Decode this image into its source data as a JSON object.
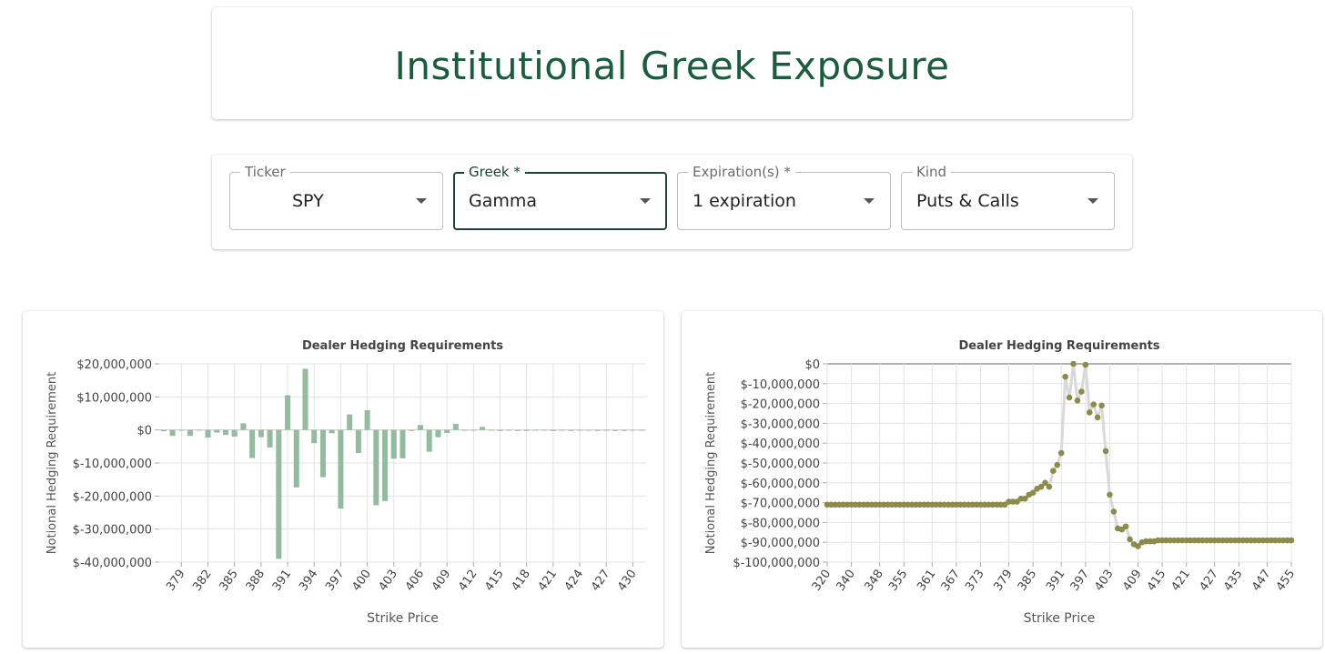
{
  "page": {
    "title": "Institutional Greek Exposure"
  },
  "controls": {
    "ticker": {
      "label": "Ticker",
      "value": "SPY"
    },
    "greek": {
      "label": "Greek *",
      "value": "Gamma"
    },
    "expiration": {
      "label": "Expiration(s) *",
      "value": "1 expiration"
    },
    "kind": {
      "label": "Kind",
      "value": "Puts & Calls"
    }
  },
  "colors": {
    "accent": "#1b4332",
    "bar": "#93bc9f",
    "line": "#d9d9d9",
    "point": "#8b8b4a"
  },
  "chart_data": [
    {
      "type": "bar",
      "title": "Dealer Hedging Requirements",
      "xlabel": "Strike Price",
      "ylabel": "Notional Hedging Requirement",
      "ylim": [
        -40000000,
        20000000
      ],
      "yticks": [
        20000000,
        10000000,
        0,
        -10000000,
        -20000000,
        -30000000,
        -40000000
      ],
      "ytick_labels": [
        "$20,000,000",
        "$10,000,000",
        "$0",
        "$-10,000,000",
        "$-20,000,000",
        "$-30,000,000",
        "$-40,000,000"
      ],
      "xtick_labels": [
        "379",
        "382",
        "385",
        "388",
        "391",
        "394",
        "397",
        "400",
        "403",
        "406",
        "409",
        "412",
        "415",
        "418",
        "421",
        "424",
        "427",
        "430"
      ],
      "grid": true,
      "categories": [
        377,
        378,
        379,
        380,
        381,
        382,
        383,
        384,
        385,
        386,
        387,
        388,
        389,
        390,
        391,
        392,
        393,
        394,
        395,
        396,
        397,
        398,
        399,
        400,
        401,
        402,
        403,
        404,
        405,
        406,
        407,
        408,
        409,
        410,
        411,
        412,
        413,
        414,
        415,
        416,
        417,
        418,
        419,
        420,
        421,
        422,
        423,
        424,
        425,
        426,
        427,
        428,
        429,
        430,
        431
      ],
      "values": [
        -400000,
        -1800000,
        0,
        -1800000,
        0,
        -2300000,
        -800000,
        -1500000,
        -2000000,
        2000000,
        -8500000,
        -2200000,
        -5300000,
        -39000000,
        10500000,
        -17400000,
        18500000,
        -4000000,
        -14300000,
        -1000000,
        -23800000,
        4700000,
        -7000000,
        6000000,
        -22800000,
        -21500000,
        -8700000,
        -8600000,
        -300000,
        1500000,
        -6600000,
        -2200000,
        -900000,
        1800000,
        -200000,
        -200000,
        900000,
        -100000,
        -300000,
        -200000,
        -300000,
        -300000,
        -200000,
        -200000,
        -300000,
        -200000,
        -300000,
        -200000,
        -200000,
        -300000,
        -200000,
        -300000,
        -300000,
        -200000,
        -200000
      ]
    },
    {
      "type": "line",
      "title": "Dealer Hedging Requirements",
      "xlabel": "Strike Price",
      "ylabel": "Notional Hedging Requirement",
      "ylim": [
        -100000000,
        0
      ],
      "yticks": [
        0,
        -10000000,
        -20000000,
        -30000000,
        -40000000,
        -50000000,
        -60000000,
        -70000000,
        -80000000,
        -90000000,
        -100000000
      ],
      "ytick_labels": [
        "$0",
        "$-10,000,000",
        "$-20,000,000",
        "$-30,000,000",
        "$-40,000,000",
        "$-50,000,000",
        "$-60,000,000",
        "$-70,000,000",
        "$-80,000,000",
        "$-90,000,000",
        "$-100,000,000"
      ],
      "xtick_labels": [
        "320",
        "340",
        "348",
        "355",
        "361",
        "367",
        "373",
        "379",
        "385",
        "391",
        "397",
        "403",
        "409",
        "415",
        "421",
        "427",
        "435",
        "447",
        "455"
      ],
      "grid": true,
      "values": [
        -71000000,
        -71000000,
        -71000000,
        -71000000,
        -71000000,
        -71000000,
        -71000000,
        -71000000,
        -71000000,
        -71000000,
        -71000000,
        -71000000,
        -71000000,
        -71000000,
        -71000000,
        -71000000,
        -71000000,
        -71000000,
        -71000000,
        -71000000,
        -71000000,
        -71000000,
        -71000000,
        -71000000,
        -71000000,
        -71000000,
        -71000000,
        -71000000,
        -71000000,
        -71000000,
        -71000000,
        -71000000,
        -71000000,
        -71000000,
        -71000000,
        -71000000,
        -71000000,
        -71000000,
        -71000000,
        -71000000,
        -71000000,
        -71000000,
        -71000000,
        -71000000,
        -71000000,
        -69500000,
        -69500000,
        -69500000,
        -68000000,
        -68000000,
        -66000000,
        -65000000,
        -63000000,
        -62000000,
        -60000000,
        -62000000,
        -54000000,
        -51000000,
        -45000000,
        -6500000,
        -17000000,
        0,
        -18500000,
        -14000000,
        -500000,
        -24500000,
        -20500000,
        -27000000,
        -21000000,
        -44000000,
        -66000000,
        -74500000,
        -83000000,
        -83500000,
        -82000000,
        -88500000,
        -91000000,
        -92000000,
        -90000000,
        -89500000,
        -89500000,
        -89500000,
        -89000000,
        -89000000,
        -89000000,
        -89000000,
        -89000000,
        -89000000,
        -89000000,
        -89000000,
        -89000000,
        -89000000,
        -89000000,
        -89000000,
        -89000000,
        -89000000,
        -89000000,
        -89000000,
        -89000000,
        -89000000,
        -89000000,
        -89000000,
        -89000000,
        -89000000,
        -89000000,
        -89000000,
        -89000000,
        -89000000,
        -89000000,
        -89000000,
        -89000000,
        -89000000,
        -89000000,
        -89000000,
        -89000000,
        -89000000
      ]
    }
  ]
}
